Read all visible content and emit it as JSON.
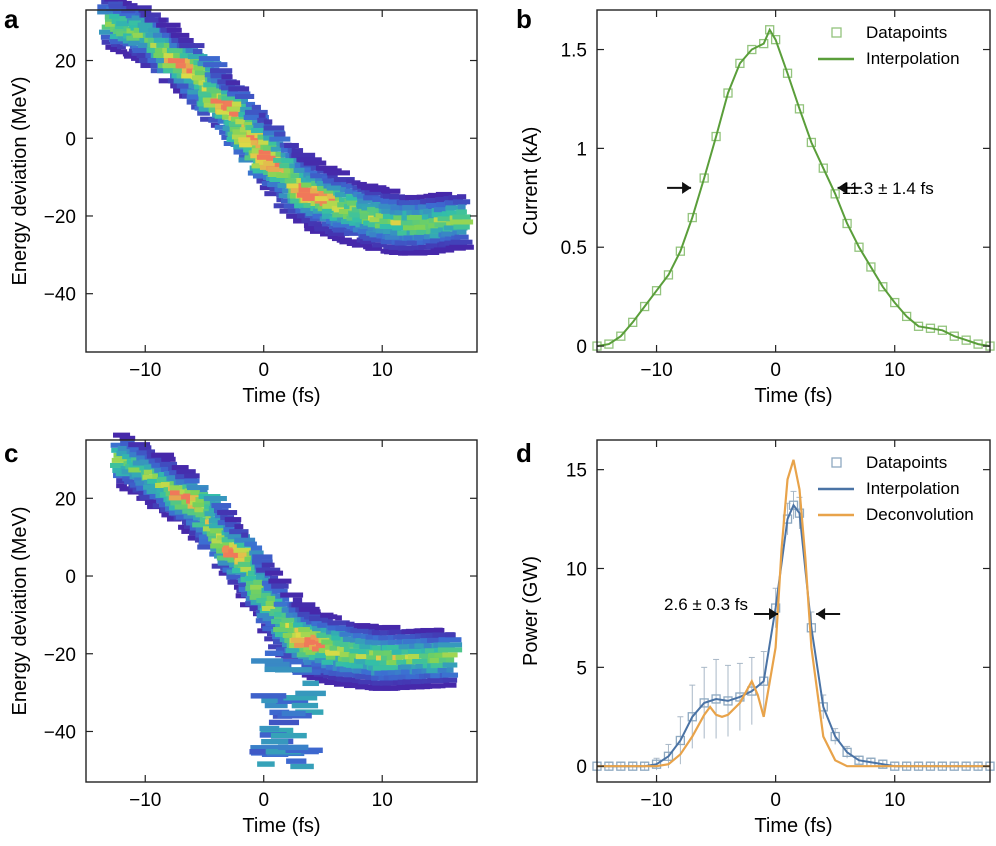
{
  "chart_data": [
    {
      "panel": "a",
      "type": "heatmap",
      "xlabel": "Time (fs)",
      "ylabel": "Energy deviation (MeV)",
      "xlim": [
        -15,
        18
      ],
      "ylim": [
        -55,
        33
      ],
      "xticks": [
        -10,
        0,
        10
      ],
      "yticks": [
        20,
        0,
        -20,
        -40
      ],
      "xtick_labels": [
        "−10",
        "0",
        "10"
      ],
      "ytick_labels": [
        "20",
        "0",
        "−20",
        "−40"
      ],
      "ridge": [
        [
          -13,
          30
        ],
        [
          -10,
          27
        ],
        [
          -8,
          22
        ],
        [
          -6,
          17
        ],
        [
          -4,
          11
        ],
        [
          -2,
          5
        ],
        [
          0,
          -3
        ],
        [
          2,
          -9
        ],
        [
          4,
          -14
        ],
        [
          6,
          -17
        ],
        [
          8,
          -19
        ],
        [
          10,
          -21
        ],
        [
          12,
          -22
        ],
        [
          14,
          -22
        ],
        [
          17,
          -21
        ]
      ],
      "peaks": [
        [
          -1,
          0
        ],
        [
          0,
          -7
        ],
        [
          4,
          -15
        ],
        [
          -6,
          19
        ],
        [
          -3,
          8
        ]
      ]
    },
    {
      "panel": "b",
      "type": "line",
      "xlabel": "Time (fs)",
      "ylabel": "Current (kA)",
      "xlim": [
        -15,
        18
      ],
      "ylim": [
        -0.03,
        1.7
      ],
      "xticks": [
        -10,
        0,
        10
      ],
      "yticks": [
        0,
        0.5,
        1,
        1.5
      ],
      "xtick_labels": [
        "−10",
        "0",
        "10"
      ],
      "ytick_labels": [
        "0",
        "0.5",
        "1",
        "1.5"
      ],
      "series": [
        {
          "name": "Datapoints",
          "color": "#93c47d",
          "x": [
            -15,
            -14,
            -13,
            -12,
            -11,
            -10,
            -9,
            -8,
            -7,
            -6,
            -5,
            -4,
            -3,
            -2,
            -1,
            -0.5,
            0,
            1,
            2,
            3,
            4,
            5,
            6,
            7,
            8,
            9,
            10,
            11,
            12,
            13,
            14,
            15,
            16,
            17,
            18
          ],
          "y": [
            0,
            0.01,
            0.05,
            0.12,
            0.2,
            0.28,
            0.36,
            0.48,
            0.65,
            0.85,
            1.06,
            1.28,
            1.43,
            1.5,
            1.53,
            1.6,
            1.55,
            1.38,
            1.2,
            1.03,
            0.9,
            0.77,
            0.62,
            0.5,
            0.4,
            0.3,
            0.22,
            0.15,
            0.1,
            0.09,
            0.08,
            0.05,
            0.03,
            0.01,
            0
          ]
        },
        {
          "name": "Interpolation",
          "color": "#5a9e3a",
          "x": [
            -15,
            -14,
            -13,
            -12,
            -11,
            -10,
            -9,
            -8,
            -7,
            -6,
            -5,
            -4,
            -3,
            -2,
            -1,
            -0.5,
            0,
            1,
            2,
            3,
            4,
            5,
            6,
            7,
            8,
            9,
            10,
            11,
            12,
            13,
            14,
            15,
            16,
            17,
            18
          ],
          "y": [
            0,
            0.01,
            0.05,
            0.12,
            0.2,
            0.28,
            0.36,
            0.48,
            0.65,
            0.85,
            1.06,
            1.28,
            1.43,
            1.5,
            1.53,
            1.6,
            1.55,
            1.38,
            1.2,
            1.03,
            0.9,
            0.77,
            0.62,
            0.5,
            0.4,
            0.3,
            0.22,
            0.15,
            0.1,
            0.09,
            0.08,
            0.05,
            0.03,
            0.01,
            0
          ]
        }
      ],
      "annotation": "11.3 ± 1.4 fs",
      "fwhm_arrows": [
        [
          -7.1,
          0.8
        ],
        [
          5.2,
          0.8
        ]
      ],
      "legend": "top-right"
    },
    {
      "panel": "c",
      "type": "heatmap",
      "xlabel": "Time (fs)",
      "ylabel": "Energy deviation (MeV)",
      "xlim": [
        -15,
        18
      ],
      "ylim": [
        -53,
        35
      ],
      "xticks": [
        -10,
        0,
        10
      ],
      "yticks": [
        20,
        0,
        -20,
        -40
      ],
      "xtick_labels": [
        "−10",
        "0",
        "10"
      ],
      "ytick_labels": [
        "20",
        "0",
        "−20",
        "−40"
      ],
      "ridge": [
        [
          -12,
          30
        ],
        [
          -10,
          27
        ],
        [
          -8,
          23
        ],
        [
          -6,
          19
        ],
        [
          -4,
          12
        ],
        [
          -2,
          5
        ],
        [
          0,
          -4
        ],
        [
          2,
          -12
        ],
        [
          4,
          -17
        ],
        [
          6,
          -19
        ],
        [
          8,
          -20
        ],
        [
          10,
          -21
        ],
        [
          12,
          -21
        ],
        [
          14,
          -21
        ],
        [
          16,
          -21
        ]
      ],
      "tail": [
        [
          2,
          -22
        ],
        [
          2,
          -30
        ],
        [
          2,
          -38
        ],
        [
          2,
          -44
        ],
        [
          2,
          -47
        ]
      ],
      "peaks": [
        [
          -5,
          20
        ],
        [
          -2,
          6
        ],
        [
          4,
          -17
        ]
      ]
    },
    {
      "panel": "d",
      "type": "line",
      "xlabel": "Time (fs)",
      "ylabel": "Power (GW)",
      "xlim": [
        -15,
        18
      ],
      "ylim": [
        -0.8,
        16.5
      ],
      "xticks": [
        -10,
        0,
        10
      ],
      "yticks": [
        0,
        5,
        10,
        15
      ],
      "xtick_labels": [
        "−10",
        "0",
        "10"
      ],
      "ytick_labels": [
        "0",
        "5",
        "10",
        "15"
      ],
      "series": [
        {
          "name": "Datapoints",
          "color": "#8ea9c1",
          "x": [
            -15,
            -14,
            -13,
            -12,
            -11,
            -10,
            -9,
            -8,
            -7,
            -6,
            -5,
            -4,
            -3,
            -2,
            -1,
            0,
            1,
            1.5,
            2,
            3,
            4,
            5,
            6,
            7,
            8,
            9,
            10,
            11,
            12,
            13,
            14,
            15,
            16,
            17,
            18
          ],
          "y": [
            0,
            0,
            0,
            0,
            0,
            0.1,
            0.5,
            1.3,
            2.5,
            3.2,
            3.4,
            3.3,
            3.5,
            3.8,
            4.3,
            8.0,
            12.5,
            13.2,
            12.8,
            7.0,
            3.0,
            1.5,
            0.7,
            0.3,
            0.2,
            0.1,
            0,
            0,
            0,
            0,
            0,
            0,
            0,
            0,
            0
          ],
          "err": [
            0.2,
            0.2,
            0.2,
            0.2,
            0.2,
            0.3,
            0.6,
            1.2,
            1.6,
            1.8,
            2.0,
            1.8,
            1.7,
            1.7,
            1.5,
            1.0,
            0.8,
            0.7,
            0.8,
            0.8,
            0.6,
            0.4,
            0.3,
            0.2,
            0.2,
            0.2,
            0.2,
            0.2,
            0.2,
            0.2,
            0.2,
            0.2,
            0.2,
            0.2,
            0.2
          ]
        },
        {
          "name": "Interpolation",
          "color": "#4a73a5",
          "x": [
            -15,
            -14,
            -13,
            -12,
            -11,
            -10,
            -9,
            -8,
            -7,
            -6,
            -5,
            -4,
            -3,
            -2,
            -1,
            0,
            1,
            1.5,
            2,
            3,
            4,
            5,
            6,
            7,
            8,
            9,
            10,
            11,
            12,
            13,
            14,
            15,
            16,
            17,
            18
          ],
          "y": [
            0,
            0,
            0,
            0,
            0,
            0.1,
            0.5,
            1.3,
            2.5,
            3.2,
            3.4,
            3.3,
            3.5,
            3.8,
            4.3,
            8.0,
            12.5,
            13.2,
            12.8,
            7.0,
            3.0,
            1.5,
            0.7,
            0.3,
            0.2,
            0.1,
            0,
            0,
            0,
            0,
            0,
            0,
            0,
            0,
            0
          ]
        },
        {
          "name": "Deconvolution",
          "color": "#e8a34a",
          "x": [
            -15,
            -12,
            -10,
            -9,
            -8,
            -7,
            -6,
            -5.5,
            -5,
            -4.5,
            -4,
            -3,
            -2,
            -1.5,
            -1,
            0,
            0.5,
            1,
            1.5,
            2,
            2.5,
            3,
            4,
            5,
            6,
            8,
            10,
            12,
            14,
            16,
            18
          ],
          "y": [
            0,
            0,
            0,
            0.1,
            0.6,
            1.5,
            2.6,
            3.0,
            2.6,
            2.5,
            2.6,
            3.2,
            4.3,
            3.6,
            2.5,
            6.0,
            11.0,
            14.5,
            15.5,
            14.0,
            10.5,
            6.0,
            1.5,
            0.3,
            0,
            0,
            0,
            0,
            0,
            0,
            0
          ]
        }
      ],
      "annotation": "2.6 ± 0.3 fs",
      "fwhm_arrows": [
        [
          0.2,
          7.7
        ],
        [
          3.4,
          7.7
        ]
      ],
      "legend": "top-right"
    }
  ]
}
